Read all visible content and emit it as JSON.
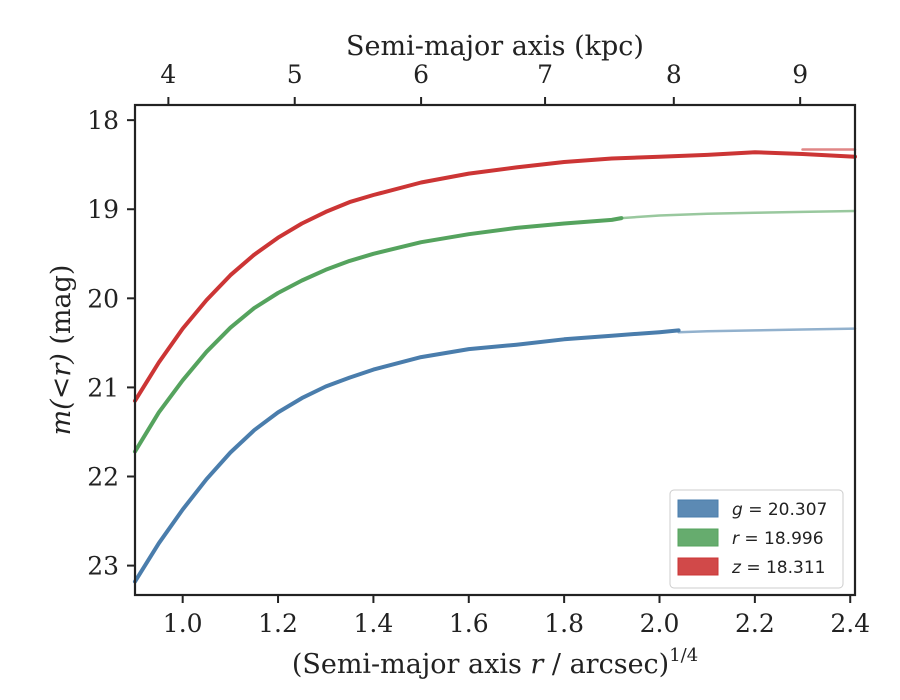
{
  "chart_data": {
    "type": "line",
    "xlabel_prefix": "(Semi-major axis ",
    "xlabel_var": "r",
    "xlabel_suffix": " / arcsec)",
    "xlabel_exp": "1/4",
    "ylabel_var": "m(<r)",
    "ylabel_unit": " (mag)",
    "top_xlabel": "Semi-major axis (kpc)",
    "xlim": [
      0.9,
      2.41
    ],
    "ylim": [
      23.33,
      17.83
    ],
    "x_ticks": [
      1.0,
      1.2,
      1.4,
      1.6,
      1.8,
      2.0,
      2.2,
      2.4
    ],
    "x_tick_labels": [
      "1.0",
      "1.2",
      "1.4",
      "1.6",
      "1.8",
      "2.0",
      "2.2",
      "2.4"
    ],
    "y_ticks": [
      18,
      19,
      20,
      21,
      22,
      23
    ],
    "y_tick_labels": [
      "18",
      "19",
      "20",
      "21",
      "22",
      "23"
    ],
    "top_ticks": [
      {
        "label": "4",
        "x": 0.97
      },
      {
        "label": "5",
        "x": 1.235
      },
      {
        "label": "6",
        "x": 1.5
      },
      {
        "label": "7",
        "x": 1.76
      },
      {
        "label": "8",
        "x": 2.03
      },
      {
        "label": "9",
        "x": 2.295
      }
    ],
    "legend_position": "lower right",
    "series": [
      {
        "band": "g",
        "value": "20.307",
        "color": "#4a7dac",
        "data_x": [
          0.9,
          0.95,
          1.0,
          1.05,
          1.1,
          1.15,
          1.2,
          1.25,
          1.3,
          1.35,
          1.4,
          1.5,
          1.6,
          1.7,
          1.8,
          1.9,
          2.0,
          2.04
        ],
        "data_y": [
          23.18,
          22.75,
          22.37,
          22.03,
          21.73,
          21.48,
          21.28,
          21.12,
          20.99,
          20.89,
          20.8,
          20.66,
          20.57,
          20.52,
          20.46,
          20.42,
          20.38,
          20.36
        ],
        "ext_x": [
          2.04,
          2.1,
          2.2,
          2.3,
          2.41
        ],
        "ext_y": [
          20.38,
          20.37,
          20.36,
          20.35,
          20.34
        ]
      },
      {
        "band": "r",
        "value": "18.996",
        "color": "#55a35e",
        "data_x": [
          0.9,
          0.95,
          1.0,
          1.05,
          1.1,
          1.15,
          1.2,
          1.25,
          1.3,
          1.35,
          1.4,
          1.5,
          1.6,
          1.7,
          1.8,
          1.9,
          1.92
        ],
        "data_y": [
          21.72,
          21.28,
          20.92,
          20.6,
          20.33,
          20.11,
          19.94,
          19.8,
          19.68,
          19.58,
          19.5,
          19.37,
          19.28,
          19.21,
          19.16,
          19.12,
          19.1
        ],
        "ext_x": [
          1.92,
          2.0,
          2.1,
          2.2,
          2.3,
          2.41
        ],
        "ext_y": [
          19.1,
          19.07,
          19.05,
          19.04,
          19.03,
          19.02
        ]
      },
      {
        "band": "z",
        "value": "18.311",
        "color": "#cc3535",
        "data_x": [
          0.9,
          0.95,
          1.0,
          1.05,
          1.1,
          1.15,
          1.2,
          1.25,
          1.3,
          1.35,
          1.4,
          1.5,
          1.6,
          1.7,
          1.8,
          1.9,
          2.0,
          2.1,
          2.2,
          2.3,
          2.41
        ],
        "data_y": [
          21.15,
          20.72,
          20.34,
          20.02,
          19.74,
          19.51,
          19.32,
          19.16,
          19.03,
          18.92,
          18.84,
          18.7,
          18.6,
          18.53,
          18.47,
          18.43,
          18.41,
          18.39,
          18.36,
          18.38,
          18.41
        ],
        "ext_x": [
          2.3,
          2.41
        ],
        "ext_y": [
          18.33,
          18.33
        ]
      }
    ]
  }
}
